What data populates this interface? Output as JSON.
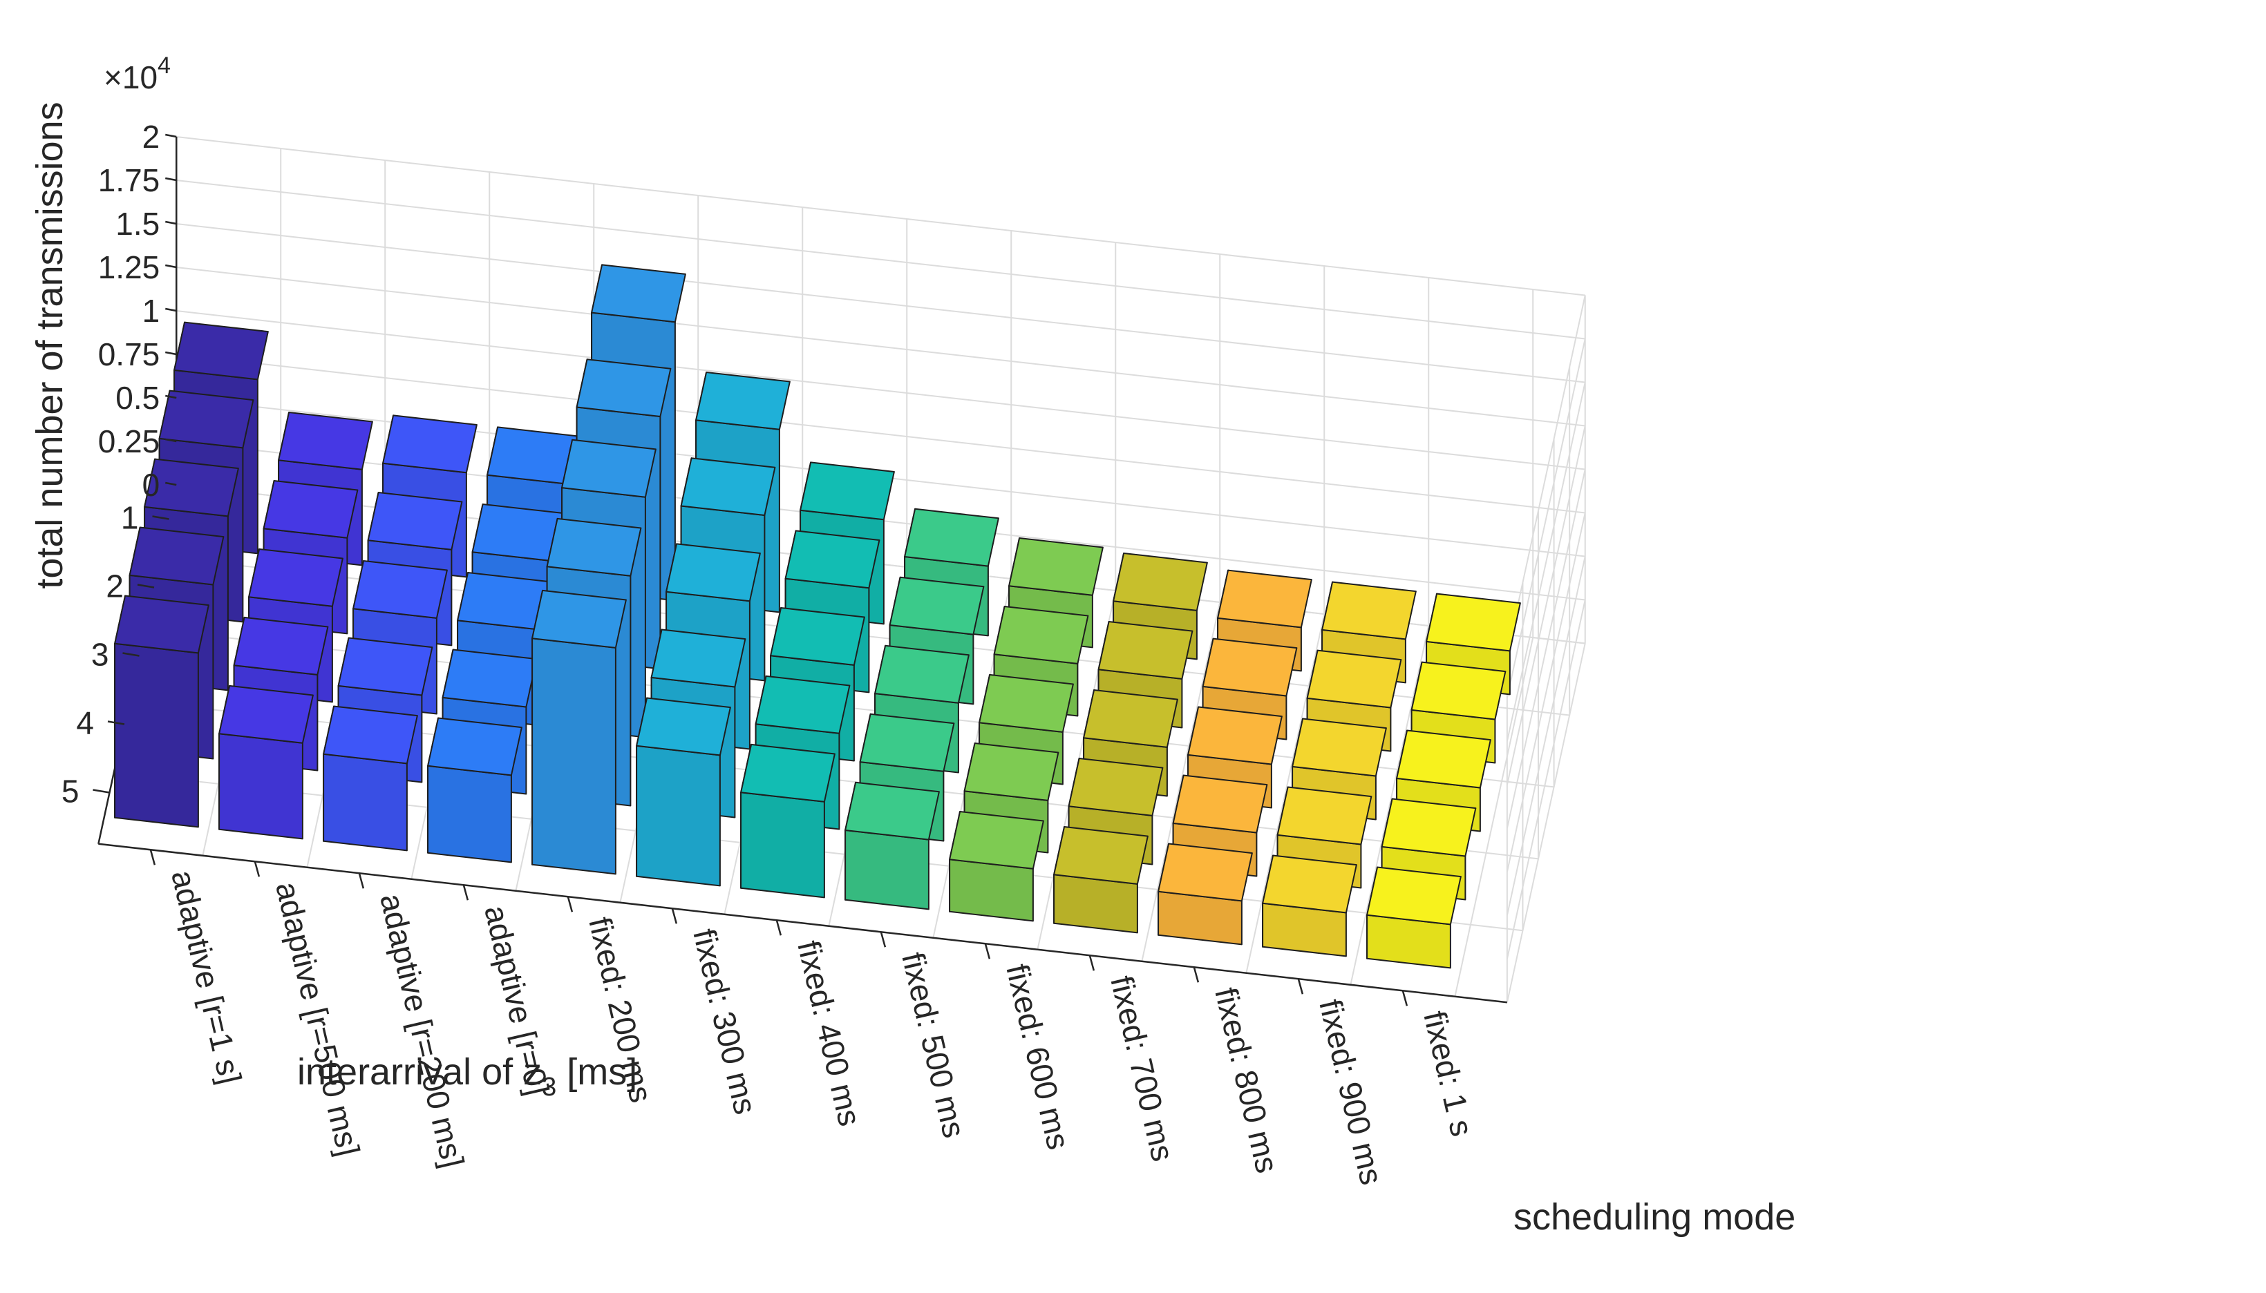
{
  "chart_data": {
    "type": "bar3d",
    "ylabel": "total number of transmissions",
    "y_exponent_label": "×10",
    "y_exponent": "4",
    "xlabel": "scheduling mode",
    "zlabel_main": "interarrival of z",
    "zlabel_sub": "3",
    "zlabel_unit": " [ms]",
    "ylim": [
      0,
      2
    ],
    "y_ticks": [
      "0",
      "0.25",
      "0.5",
      "0.75",
      "1",
      "1.25",
      "1.5",
      "1.75",
      "2"
    ],
    "y_tick_values": [
      0,
      0.25,
      0.5,
      0.75,
      1,
      1.25,
      1.5,
      1.75,
      2
    ],
    "interarrival_ticks": [
      "1",
      "2",
      "3",
      "4",
      "5"
    ],
    "modes": [
      "adaptive [r=1 s]",
      "adaptive [r=500 ms]",
      "adaptive [r=200 ms]",
      "adaptive [r=0]",
      "fixed: 200 ms",
      "fixed: 300 ms",
      "fixed: 400 ms",
      "fixed: 500 ms",
      "fixed: 600 ms",
      "fixed: 700 ms",
      "fixed: 800 ms",
      "fixed: 900 ms",
      "fixed: 1 s"
    ],
    "colors": [
      "#3a2ba8",
      "#4638e4",
      "#3e56f8",
      "#2d7cf6",
      "#2f96e6",
      "#1fb0d8",
      "#12bdb3",
      "#3bca8a",
      "#7ecb52",
      "#c7bf2c",
      "#fbb63c",
      "#f3d62e",
      "#f7f21d"
    ],
    "series": [
      {
        "name": "1",
        "values": [
          1.0,
          0.55,
          0.6,
          0.6,
          1.6,
          1.05,
          0.6,
          0.4,
          0.3,
          0.28,
          0.25,
          0.25,
          0.25
        ]
      },
      {
        "name": "2",
        "values": [
          1.0,
          0.55,
          0.55,
          0.55,
          1.45,
          0.95,
          0.6,
          0.4,
          0.3,
          0.28,
          0.25,
          0.25,
          0.25
        ]
      },
      {
        "name": "3",
        "values": [
          1.0,
          0.55,
          0.55,
          0.55,
          1.38,
          0.85,
          0.55,
          0.4,
          0.3,
          0.28,
          0.25,
          0.25,
          0.25
        ]
      },
      {
        "name": "4",
        "values": [
          1.0,
          0.55,
          0.5,
          0.5,
          1.32,
          0.75,
          0.55,
          0.4,
          0.3,
          0.28,
          0.25,
          0.25,
          0.25
        ]
      },
      {
        "name": "5",
        "values": [
          1.0,
          0.55,
          0.5,
          0.5,
          1.3,
          0.75,
          0.55,
          0.4,
          0.3,
          0.28,
          0.25,
          0.25,
          0.25
        ]
      }
    ]
  }
}
